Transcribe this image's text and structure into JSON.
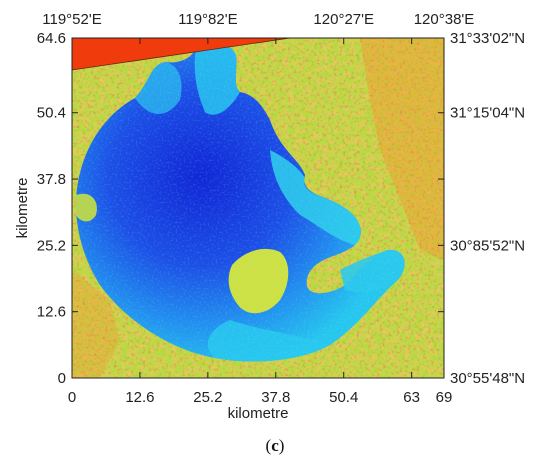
{
  "figure": {
    "caption_open": "(",
    "caption_letter": "c",
    "caption_close": ")"
  },
  "chart_data": {
    "type": "raster-map",
    "xlabel": "kilometre",
    "ylabel": "kilometre",
    "xlim": [
      0,
      69
    ],
    "ylim": [
      0,
      64.6
    ],
    "x_ticks": [
      0,
      12.6,
      25.2,
      37.8,
      50.4,
      63,
      69
    ],
    "x_tick_labels": [
      "0",
      "12.6",
      "25.2",
      "37.8",
      "50.4",
      "63",
      "69"
    ],
    "y_ticks": [
      0,
      12.6,
      25.2,
      37.8,
      50.4,
      64.6
    ],
    "y_tick_labels": [
      "0",
      "12.6",
      "25.2",
      "37.8",
      "50.4",
      "64.6"
    ],
    "top_longitude_labels": [
      "119°52'E",
      "119°82'E",
      "120°27'E",
      "120°38'E"
    ],
    "top_longitude_positions_km": [
      0,
      25.2,
      50.4,
      69
    ],
    "right_latitude_labels": [
      "31°33'02\"N",
      "31°15'04\"N",
      "30°85'52\"N",
      "30°55'48\"N"
    ],
    "right_latitude_positions_km": [
      64.6,
      50.4,
      25.2,
      0
    ],
    "colors": {
      "deep_water": "#1226d6",
      "mid_water": "#1f6ef0",
      "shallow_water": "#25c8ee",
      "land_low": "#7fd94a",
      "land_mid": "#e6e83a",
      "land_high": "#f0a030",
      "land_max": "#e8421e",
      "nodata_corner": "#f03c0c"
    }
  }
}
